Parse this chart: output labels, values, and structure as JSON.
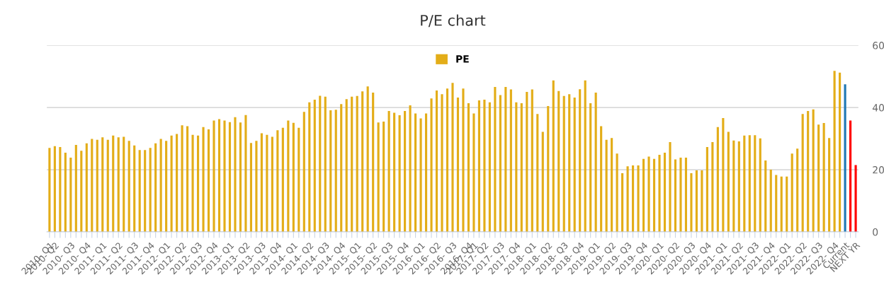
{
  "chart_data": {
    "type": "bar",
    "title": "P/E chart",
    "categories": [
      "2010- Q1",
      "2010- Q2",
      null,
      null,
      "2010- Q3",
      null,
      null,
      "2010- Q4",
      null,
      null,
      "2011- Q1",
      null,
      null,
      "2011- Q2",
      null,
      null,
      "2011- Q3",
      null,
      null,
      "2011- Q4",
      null,
      null,
      "2012- Q1",
      null,
      null,
      "2012- Q2",
      null,
      null,
      "2012- Q3",
      null,
      null,
      "2012- Q4",
      null,
      null,
      "2013- Q1",
      null,
      null,
      "2013- Q2",
      null,
      null,
      "2013- Q3",
      null,
      null,
      "2013- Q4",
      null,
      null,
      "2014- Q1",
      null,
      null,
      "2014- Q2",
      null,
      null,
      "2014- Q3",
      null,
      null,
      "2014- Q4",
      null,
      null,
      "2015- Q1",
      null,
      null,
      "2015- Q2",
      null,
      null,
      "2015- Q3",
      null,
      null,
      "2015- Q4",
      null,
      null,
      "2016- Q1",
      null,
      null,
      "2016- Q2",
      null,
      null,
      "2016- Q3",
      null,
      null,
      "2016- Q4",
      "2017- Q1",
      null,
      "2017- Q2",
      null,
      null,
      "2017- Q3",
      null,
      null,
      "2017- Q4",
      null,
      null,
      "2018- Q1",
      null,
      null,
      "2018- Q2",
      null,
      null,
      "2018- Q3",
      null,
      null,
      "2018- Q4",
      null,
      null,
      "2019- Q1",
      null,
      null,
      "2019- Q2",
      null,
      null,
      "2019- Q3",
      null,
      null,
      "2019- Q4",
      null,
      null,
      "2020- Q1",
      null,
      null,
      "2020- Q2",
      null,
      null,
      "2020- Q3",
      null,
      null,
      "2020- Q4",
      null,
      null,
      "2021- Q1",
      null,
      null,
      "2021- Q2",
      null,
      null,
      "2021- Q3",
      null,
      null,
      "2021- Q4",
      null,
      null,
      "2022- Q1",
      null,
      null,
      "2022- Q2",
      null,
      null,
      "2022- Q3",
      null,
      null,
      "2022- Q4",
      null,
      "Current",
      null,
      "NEXT YR"
    ],
    "series": [
      {
        "name": "PE",
        "color": "#e3ad18",
        "values": [
          27.0,
          27.6,
          27.3,
          25.5,
          23.9,
          28.0,
          26.1,
          28.5,
          29.9,
          29.6,
          30.4,
          29.6,
          31.0,
          30.4,
          30.6,
          29.3,
          27.8,
          26.3,
          26.3,
          27.0,
          28.5,
          29.9,
          29.3,
          31.0,
          31.5,
          34.3,
          34.0,
          31.2,
          31.0,
          33.7,
          33.0,
          35.8,
          36.3,
          35.8,
          35.3,
          36.9,
          35.2,
          37.6,
          28.6,
          29.3,
          31.7,
          31.2,
          30.6,
          32.7,
          33.5,
          35.8,
          35.1,
          33.5,
          38.6,
          41.7,
          42.5,
          43.8,
          43.5,
          39.1,
          39.3,
          41.1,
          42.7,
          43.5,
          43.7,
          45.2,
          46.8,
          44.8,
          35.2,
          35.5,
          38.9,
          38.3,
          37.5,
          38.9,
          40.7,
          38.1,
          36.5,
          38.1,
          42.9,
          45.5,
          44.3,
          46.1,
          47.9,
          43.2,
          46.1,
          41.4,
          38.1,
          42.3,
          42.5,
          41.7,
          46.6,
          44.0,
          46.6,
          45.8,
          41.7,
          41.4,
          45.0,
          45.8,
          37.9,
          32.2,
          40.5,
          48.7,
          45.3,
          43.7,
          44.3,
          43.2,
          45.9,
          48.7,
          41.4,
          44.8,
          34.0,
          29.6,
          30.2,
          25.2,
          18.9,
          21.1,
          21.4,
          21.4,
          23.5,
          24.2,
          23.5,
          24.8,
          25.5,
          28.9,
          23.3,
          23.9,
          23.9,
          18.9,
          19.8,
          19.8,
          27.3,
          28.9,
          33.7,
          36.6,
          32.2,
          29.4,
          29.1,
          31.0,
          31.1,
          31.1,
          30.1,
          23.0,
          20.0,
          18.3,
          17.8,
          17.8,
          25.2,
          26.8,
          37.9,
          38.9,
          39.4,
          34.5,
          35.0,
          30.2,
          51.8,
          51.2,
          47.5,
          35.8,
          21.5
        ],
        "colors": [
          "#e3ad18",
          "#e3ad18",
          "#e3ad18",
          "#e3ad18",
          "#e3ad18",
          "#e3ad18",
          "#e3ad18",
          "#e3ad18",
          "#e3ad18",
          "#e3ad18",
          "#e3ad18",
          "#e3ad18",
          "#e3ad18",
          "#e3ad18",
          "#e3ad18",
          "#e3ad18",
          "#e3ad18",
          "#e3ad18",
          "#e3ad18",
          "#e3ad18",
          "#e3ad18",
          "#e3ad18",
          "#e3ad18",
          "#e3ad18",
          "#e3ad18",
          "#e3ad18",
          "#e3ad18",
          "#e3ad18",
          "#e3ad18",
          "#e3ad18",
          "#e3ad18",
          "#e3ad18",
          "#e3ad18",
          "#e3ad18",
          "#e3ad18",
          "#e3ad18",
          "#e3ad18",
          "#e3ad18",
          "#e3ad18",
          "#e3ad18",
          "#e3ad18",
          "#e3ad18",
          "#e3ad18",
          "#e3ad18",
          "#e3ad18",
          "#e3ad18",
          "#e3ad18",
          "#e3ad18",
          "#e3ad18",
          "#e3ad18",
          "#e3ad18",
          "#e3ad18",
          "#e3ad18",
          "#e3ad18",
          "#e3ad18",
          "#e3ad18",
          "#e3ad18",
          "#e3ad18",
          "#e3ad18",
          "#e3ad18",
          "#e3ad18",
          "#e3ad18",
          "#e3ad18",
          "#e3ad18",
          "#e3ad18",
          "#e3ad18",
          "#e3ad18",
          "#e3ad18",
          "#e3ad18",
          "#e3ad18",
          "#e3ad18",
          "#e3ad18",
          "#e3ad18",
          "#e3ad18",
          "#e3ad18",
          "#e3ad18",
          "#e3ad18",
          "#e3ad18",
          "#e3ad18",
          "#e3ad18",
          "#e3ad18",
          "#e3ad18",
          "#e3ad18",
          "#e3ad18",
          "#e3ad18",
          "#e3ad18",
          "#e3ad18",
          "#e3ad18",
          "#e3ad18",
          "#e3ad18",
          "#e3ad18",
          "#e3ad18",
          "#e3ad18",
          "#e3ad18",
          "#e3ad18",
          "#e3ad18",
          "#e3ad18",
          "#e3ad18",
          "#e3ad18",
          "#e3ad18",
          "#e3ad18",
          "#e3ad18",
          "#e3ad18",
          "#e3ad18",
          "#e3ad18",
          "#e3ad18",
          "#e3ad18",
          "#e3ad18",
          "#e3ad18",
          "#e3ad18",
          "#e3ad18",
          "#e3ad18",
          "#e3ad18",
          "#e3ad18",
          "#e3ad18",
          "#e3ad18",
          "#e3ad18",
          "#e3ad18",
          "#e3ad18",
          "#e3ad18",
          "#e3ad18",
          "#e3ad18",
          "#e3ad18",
          "#e3ad18",
          "#e3ad18",
          "#e3ad18",
          "#e3ad18",
          "#e3ad18",
          "#e3ad18",
          "#e3ad18",
          "#e3ad18",
          "#e3ad18",
          "#e3ad18",
          "#e3ad18",
          "#e3ad18",
          "#e3ad18",
          "#e3ad18",
          "#e3ad18",
          "#e3ad18",
          "#e3ad18",
          "#e3ad18",
          "#e3ad18",
          "#e3ad18",
          "#e3ad18",
          "#e3ad18",
          "#e3ad18",
          "#e3ad18",
          "#e3ad18",
          "#e3ad18",
          "#e3ad18",
          "#1f77b4",
          "#ff0000",
          "#ff0000"
        ]
      }
    ],
    "ylim": [
      0,
      60
    ],
    "yticks": [
      0,
      20,
      40,
      60
    ],
    "grid": "y",
    "legend": "top"
  }
}
